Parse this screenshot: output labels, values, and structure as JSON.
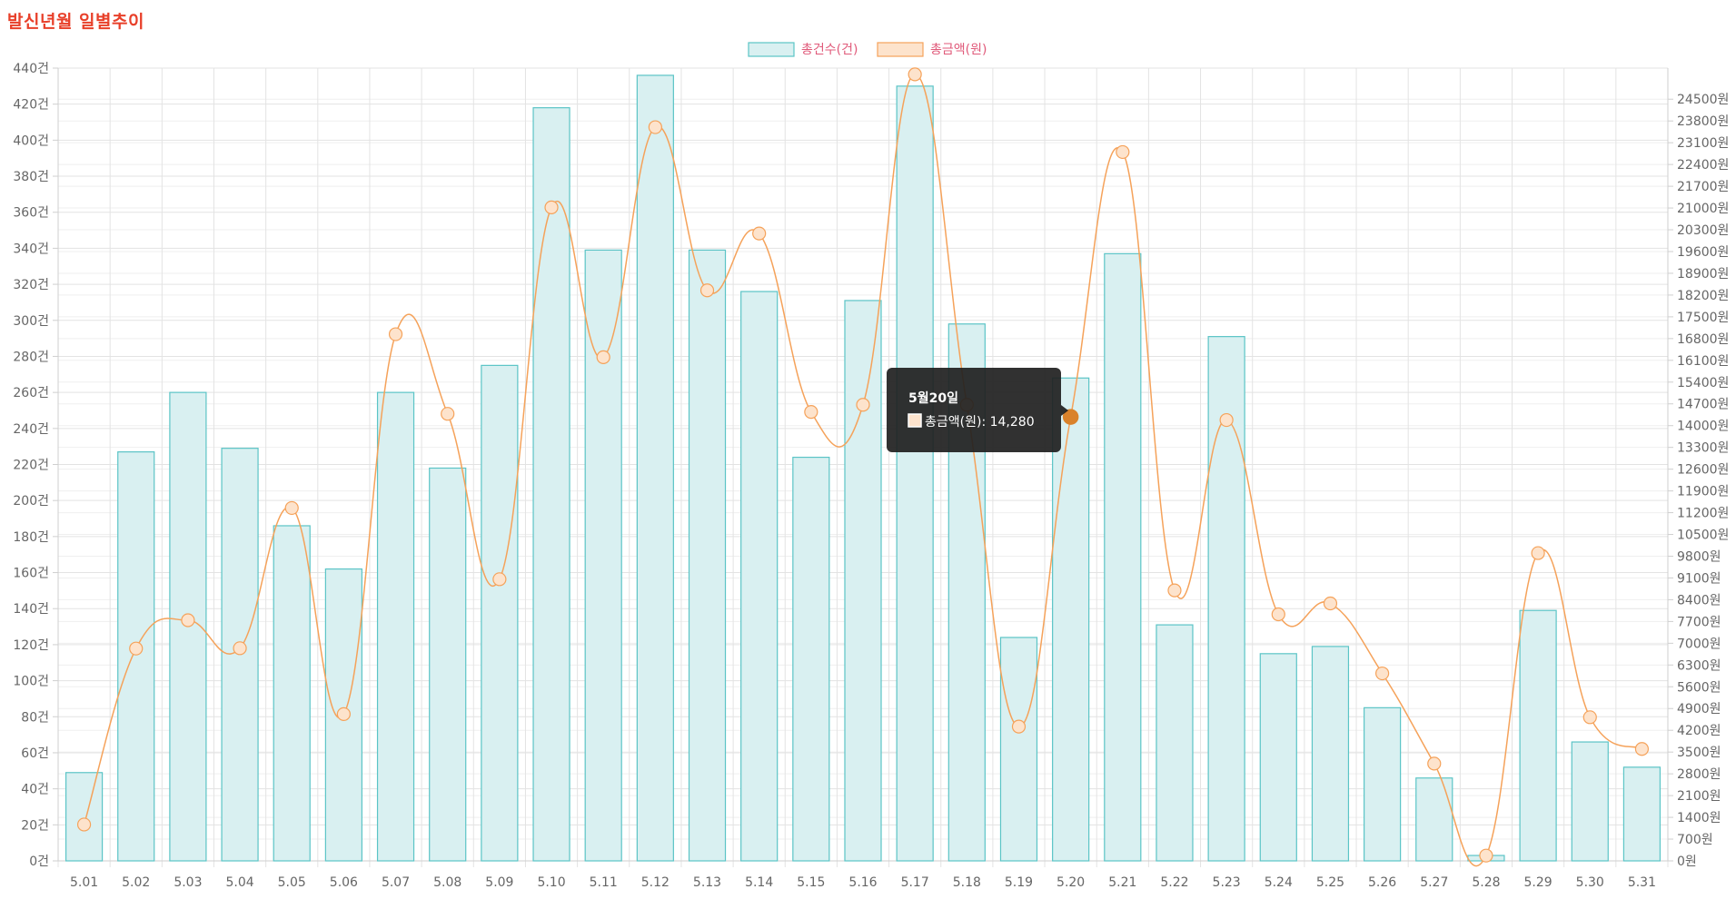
{
  "page": {
    "title": "발신년월 일별추이"
  },
  "colors": {
    "title": "#e8402a",
    "bar_fill": "#d9f0f1",
    "bar_stroke": "#5bc4c6",
    "line_stroke": "#f5a25a",
    "point_fill": "#fde3cc",
    "active_point": "#d9822b",
    "grid": "#e3e3e3",
    "legend_count_text": "#e05a7a",
    "legend_amount_text": "#e05a7a"
  },
  "chart_data": {
    "type": "bar",
    "categories": [
      "5.01",
      "5.02",
      "5.03",
      "5.04",
      "5.05",
      "5.06",
      "5.07",
      "5.08",
      "5.09",
      "5.10",
      "5.11",
      "5.12",
      "5.13",
      "5.14",
      "5.15",
      "5.16",
      "5.17",
      "5.18",
      "5.19",
      "5.20",
      "5.21",
      "5.22",
      "5.23",
      "5.24",
      "5.25",
      "5.26",
      "5.27",
      "5.28",
      "5.29",
      "5.30",
      "5.31"
    ],
    "series": [
      {
        "name": "총건수(건)",
        "type": "bar",
        "axis": "left",
        "values": [
          49,
          227,
          260,
          229,
          186,
          162,
          260,
          218,
          275,
          418,
          339,
          436,
          339,
          316,
          224,
          311,
          430,
          298,
          124,
          268,
          337,
          131,
          291,
          115,
          119,
          85,
          46,
          3,
          139,
          66,
          52
        ]
      },
      {
        "name": "총금액(원)",
        "type": "line",
        "axis": "right",
        "smooth": true,
        "values": [
          1170,
          6830,
          7740,
          6840,
          11350,
          4720,
          16940,
          14380,
          9060,
          21020,
          16200,
          23600,
          18350,
          20180,
          14440,
          14670,
          25300,
          14670,
          4320,
          14280,
          22800,
          8700,
          14180,
          7930,
          8280,
          6030,
          3130,
          170,
          9900,
          4620,
          3600
        ]
      }
    ],
    "y_left": {
      "min": 0,
      "max": 440,
      "step": 20,
      "suffix": "건",
      "ticks": [
        "0건",
        "20건",
        "40건",
        "60건",
        "80건",
        "100건",
        "120건",
        "140건",
        "160건",
        "180건",
        "200건",
        "220건",
        "240건",
        "260건",
        "280건",
        "300건",
        "320건",
        "340건",
        "360건",
        "380건",
        "400건",
        "420건",
        "440건"
      ]
    },
    "y_right": {
      "min": 0,
      "max": 25500,
      "step": 700,
      "suffix": "원",
      "ticks": [
        "0원",
        "700원",
        "1400원",
        "2100원",
        "2800원",
        "3500원",
        "4200원",
        "4900원",
        "5600원",
        "6300원",
        "7000원",
        "7700원",
        "8400원",
        "9100원",
        "9800원",
        "10500원",
        "11200원",
        "11900원",
        "12600원",
        "13300원",
        "14000원",
        "14700원",
        "15400원",
        "16100원",
        "16800원",
        "17500원",
        "18200원",
        "18900원",
        "19600원",
        "20300원",
        "21000원",
        "21700원",
        "22400원",
        "23100원",
        "23800원",
        "24500원"
      ]
    },
    "legend": {
      "position": "top",
      "items": [
        "총건수(건)",
        "총금액(원)"
      ]
    },
    "grid": true,
    "tooltip": {
      "category_index": 19,
      "title": "5월20일",
      "label": "총금액(원): 14,280"
    }
  }
}
